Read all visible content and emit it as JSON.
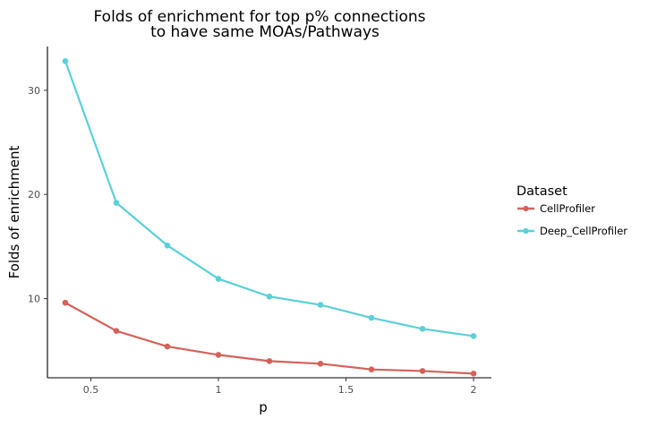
{
  "chart_data": {
    "type": "line",
    "title_lines": [
      "Folds of enrichment for top p% connections",
      "to have same MOAs/Pathways"
    ],
    "xlabel": "p",
    "ylabel": "Folds of enrichment",
    "x": [
      0.4,
      0.6,
      0.8,
      1.0,
      1.2,
      1.4,
      1.6,
      1.8,
      2.0
    ],
    "xlim": [
      0.33,
      2.07
    ],
    "ylim": [
      2.4,
      34.2
    ],
    "x_ticks": [
      {
        "value": 0.5,
        "label": "0.5"
      },
      {
        "value": 1.0,
        "label": "1"
      },
      {
        "value": 1.5,
        "label": "1.5"
      },
      {
        "value": 2.0,
        "label": "2"
      }
    ],
    "y_ticks": [
      {
        "value": 10,
        "label": "10"
      },
      {
        "value": 20,
        "label": "20"
      },
      {
        "value": 30,
        "label": "30"
      }
    ],
    "grid": false,
    "legend": {
      "title": "Dataset",
      "position": "right"
    },
    "series": [
      {
        "name": "CellProfiler",
        "color": "#D5625A",
        "values": [
          9.6,
          6.9,
          5.4,
          4.6,
          4.0,
          3.75,
          3.2,
          3.05,
          2.8
        ]
      },
      {
        "name": "Deep_CellProfiler",
        "color": "#5AD0D9",
        "values": [
          32.8,
          19.2,
          15.1,
          11.9,
          10.2,
          9.4,
          8.15,
          7.1,
          6.4
        ]
      }
    ]
  }
}
